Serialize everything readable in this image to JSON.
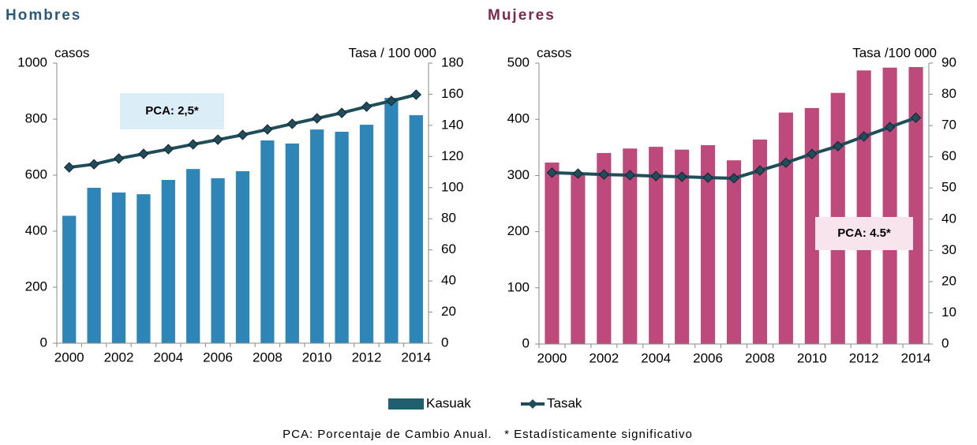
{
  "chart_data": [
    {
      "type": "bar-line",
      "title": "Hombres",
      "y_label": "casos",
      "y2_label": "Tasa / 100 000",
      "annotation": "PCA: 2,5*",
      "categories": [
        "2000",
        null,
        "2002",
        null,
        "2004",
        null,
        "2006",
        null,
        "2008",
        null,
        "2010",
        null,
        "2012",
        null,
        "2014"
      ],
      "series": [
        {
          "name": "Kasuak",
          "type": "bar",
          "color": "#2e86b8",
          "values": [
            455,
            555,
            538,
            532,
            583,
            622,
            589,
            614,
            724,
            713,
            763,
            755,
            780,
            876,
            814
          ]
        },
        {
          "name": "Tasak",
          "type": "line",
          "axis": "y2",
          "color": "#1f4e5a",
          "values": [
            113,
            115,
            118.7,
            121.7,
            124.7,
            127.8,
            130.8,
            133.9,
            137.4,
            141,
            144.5,
            148,
            152,
            155.7,
            159.7
          ]
        }
      ],
      "ylim": [
        0,
        1000
      ],
      "yticks": [
        0,
        200,
        400,
        600,
        800,
        1000
      ],
      "y2lim": [
        0,
        180
      ],
      "y2ticks": [
        0,
        20,
        40,
        60,
        80,
        100,
        120,
        140,
        160,
        180
      ]
    },
    {
      "type": "bar-line",
      "title": "Mujeres",
      "y_label": "casos",
      "y2_label": "Tasa /100 000",
      "annotation": "PCA: 4.5*",
      "categories": [
        "2000",
        null,
        "2002",
        null,
        "2004",
        null,
        "2006",
        null,
        "2008",
        null,
        "2010",
        null,
        "2012",
        null,
        "2014"
      ],
      "series": [
        {
          "type": "bar",
          "color": "#be4a7c",
          "values": [
            323,
            305,
            340,
            348,
            351,
            346,
            354,
            327,
            364,
            412,
            420,
            447,
            487,
            492,
            493
          ]
        },
        {
          "type": "line",
          "axis": "y2",
          "color": "#1f4e5a",
          "values": [
            54.9,
            54.6,
            54.3,
            54.1,
            53.8,
            53.6,
            53.3,
            53.1,
            55.6,
            58.1,
            60.9,
            63.4,
            66.5,
            69.5,
            72.5
          ]
        }
      ],
      "ylim": [
        0,
        500
      ],
      "yticks": [
        0,
        100,
        200,
        300,
        400,
        500
      ],
      "y2lim": [
        0,
        90
      ],
      "y2ticks": [
        0,
        10,
        20,
        30,
        40,
        50,
        60,
        70,
        80,
        90
      ]
    }
  ],
  "footnote": "PCA: Porcentaje de Cambio Anual.   * Estadísticamente significativo"
}
